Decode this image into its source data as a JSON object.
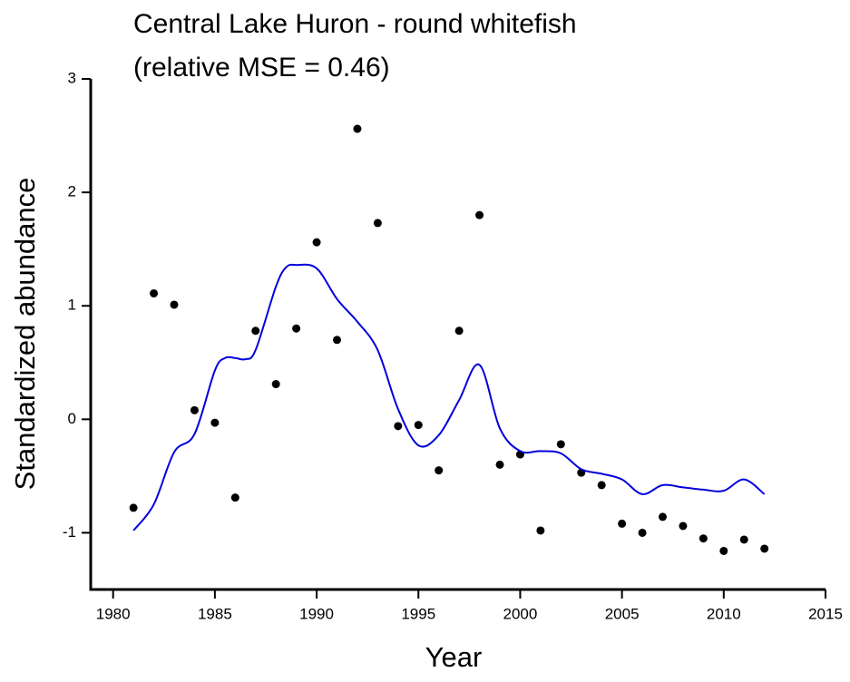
{
  "chart_data": {
    "type": "scatter",
    "title": [
      "Central Lake Huron - round whitefish",
      "(relative MSE = 0.46)"
    ],
    "x_label": "Year",
    "y_label": "Standardized abundance",
    "xlim": [
      1978.9,
      2015
    ],
    "ylim": [
      -1.5,
      3
    ],
    "xticks": [
      1980,
      1985,
      1990,
      1995,
      2000,
      2005,
      2010,
      2015
    ],
    "yticks": [
      -1,
      0,
      1,
      2,
      3
    ],
    "series": [
      {
        "mode": "markers",
        "color": "#000000",
        "x": [
          1981,
          1982,
          1983,
          1984,
          1985,
          1986,
          1987,
          1988,
          1989,
          1990,
          1991,
          1992,
          1993,
          1994,
          1995,
          1996,
          1997,
          1998,
          1999,
          2000,
          2001,
          2002,
          2003,
          2004,
          2005,
          2006,
          2007,
          2008,
          2009,
          2010,
          2011,
          2012
        ],
        "values": [
          -0.78,
          1.11,
          1.01,
          0.08,
          -0.03,
          -0.69,
          0.78,
          0.31,
          0.8,
          1.56,
          0.7,
          2.56,
          1.73,
          -0.06,
          -0.05,
          -0.45,
          0.78,
          1.8,
          -0.4,
          -0.31,
          -0.98,
          -0.22,
          -0.47,
          -0.58,
          -0.92,
          -1.0,
          -0.86,
          -0.94,
          -1.05,
          -1.16,
          -1.06,
          -1.14
        ]
      },
      {
        "mode": "line",
        "color": "#0000dd",
        "x": [
          1981,
          1982,
          1983,
          1984,
          1985,
          1985.5,
          1986,
          1986.5,
          1987,
          1988,
          1988.5,
          1989,
          1990,
          1991,
          1992,
          1993,
          1994,
          1995,
          1996,
          1997,
          1998,
          1999,
          2000,
          2001,
          2002,
          2003,
          2004,
          2005,
          2006,
          2007,
          2008,
          2009,
          2010,
          2011,
          2012
        ],
        "values": [
          -0.98,
          -0.75,
          -0.29,
          -0.13,
          0.43,
          0.54,
          0.54,
          0.53,
          0.61,
          1.17,
          1.34,
          1.36,
          1.33,
          1.06,
          0.86,
          0.61,
          0.09,
          -0.23,
          -0.14,
          0.17,
          0.48,
          -0.08,
          -0.28,
          -0.28,
          -0.3,
          -0.44,
          -0.48,
          -0.53,
          -0.66,
          -0.58,
          -0.6,
          -0.62,
          -0.63,
          -0.53,
          -0.66
        ]
      }
    ]
  }
}
